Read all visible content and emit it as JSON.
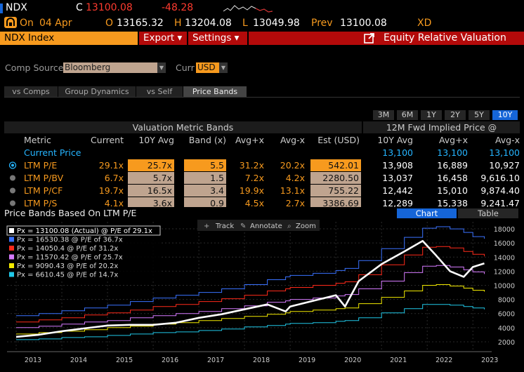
{
  "quote": {
    "ticker": "NDX",
    "c_label": "C",
    "last": "13100.08",
    "change": "-48.28",
    "status": "On",
    "date": "04 Apr",
    "o_label": "O",
    "open": "13165.32",
    "h_label": "H",
    "high": "13204.08",
    "l_label": "L",
    "low": "13049.98",
    "prev_label": "Prev",
    "prev": "13100.08",
    "exch": "XD"
  },
  "toolbar": {
    "security": "NDX Index",
    "export": "Export ▾",
    "settings": "Settings ▾",
    "function_title": "Equity Relative Valuation"
  },
  "controls": {
    "comp_source_label": "Comp Source",
    "comp_source_value": "Bloomberg",
    "curr_label": "Curr",
    "curr_value": "USD"
  },
  "tabs": [
    "vs Comps",
    "Group Dynamics",
    "vs Self",
    "Price Bands"
  ],
  "ranges": [
    "3M",
    "6M",
    "1Y",
    "2Y",
    "5Y",
    "10Y"
  ],
  "table": {
    "group_header_left": "Valuation Metric Bands",
    "group_header_right": "12M Fwd Implied Price @",
    "columns": [
      "Metric",
      "Current",
      "10Y Avg",
      "Band (x)",
      "Avg+x",
      "Avg-x",
      "Est (USD)",
      "10Y Avg",
      "Avg+x",
      "Avg-x"
    ],
    "current_price": {
      "label": "Current Price",
      "values": [
        "13,100",
        "13,100",
        "13,100"
      ]
    },
    "rows": [
      {
        "metric": "LTM P/E",
        "current": "29.1x",
        "avg": "25.7x",
        "band": "5.5",
        "avg_plus": "31.2x",
        "avg_minus": "20.2x",
        "est": "542.01",
        "p_avg": "13,908",
        "p_plus": "16,889",
        "p_minus": "10,927"
      },
      {
        "metric": "LTM P/BV",
        "current": "6.7x",
        "avg": "5.7x",
        "band": "1.5",
        "avg_plus": "7.2x",
        "avg_minus": "4.2x",
        "est": "2280.50",
        "p_avg": "13,037",
        "p_plus": "16,458",
        "p_minus": "9,616.10"
      },
      {
        "metric": "LTM P/CF",
        "current": "19.7x",
        "avg": "16.5x",
        "band": "3.4",
        "avg_plus": "19.9x",
        "avg_minus": "13.1x",
        "est": "755.22",
        "p_avg": "12,442",
        "p_plus": "15,010",
        "p_minus": "9,874.40"
      },
      {
        "metric": "LTM P/S",
        "current": "4.1x",
        "avg": "3.6x",
        "band": "0.9",
        "avg_plus": "4.5x",
        "avg_minus": "2.7x",
        "est": "3386.69",
        "p_avg": "12,289",
        "p_plus": "15,338",
        "p_minus": "9,241.47"
      }
    ]
  },
  "chart_panel": {
    "title": "Price Bands Based On LTM P/E",
    "view_chart": "Chart",
    "view_table": "Table",
    "track": "Track",
    "annotate": "Annotate",
    "zoom": "Zoom"
  },
  "colors": {
    "orange": "#f79a1e",
    "red_bar": "#b30a0a",
    "blue": "#1565d8",
    "px": "#ffffff",
    "plus1": "#3a72ff",
    "plus05": "#ff2a1a",
    "avg": "#d67bff",
    "minus": "#f3ea00",
    "minus2": "#20c8e8"
  },
  "chart_data": {
    "type": "line",
    "x": [
      2013,
      2013.5,
      2014,
      2014.5,
      2015,
      2015.5,
      2016,
      2016.5,
      2017,
      2017.5,
      2018,
      2018.5,
      2018.9,
      2019,
      2019.5,
      2020,
      2020.2,
      2020.5,
      2021,
      2021.5,
      2021.9,
      2022.2,
      2022.5,
      2022.8,
      2023,
      2023.25
    ],
    "xticks": [
      "2013",
      "2014",
      "2015",
      "2016",
      "2017",
      "2018",
      "2019",
      "2020",
      "2021",
      "2022",
      "2023"
    ],
    "yticks": [
      2000,
      4000,
      6000,
      8000,
      10000,
      12000,
      14000,
      16000,
      18000
    ],
    "ylim": [
      1000,
      19000
    ],
    "legend": [
      {
        "text": "Px = 13100.08 (Actual) @ P/E of 29.1x",
        "color": "#ffffff"
      },
      {
        "text": "Px = 16530.38 @ P/E of 36.7x",
        "color": "#3a72ff"
      },
      {
        "text": "Px = 14050.4 @ P/E of 31.2x",
        "color": "#ff2a1a"
      },
      {
        "text": "Px = 11570.42 @ P/E of 25.7x",
        "color": "#d67bff"
      },
      {
        "text": "Px = 9090.43 @ P/E of 20.2x",
        "color": "#f3ea00"
      },
      {
        "text": "Px = 6610.45 @ P/E of 14.7x",
        "color": "#20c8e8"
      }
    ],
    "series": [
      {
        "name": "Px = 13100.08 (Actual) @ P/E of 29.1x",
        "values": [
          2700,
          3000,
          3500,
          3900,
          4300,
          4400,
          4400,
          4700,
          5400,
          5900,
          6600,
          7300,
          6300,
          7000,
          7800,
          8600,
          7000,
          10600,
          13000,
          14800,
          16300,
          14200,
          12000,
          11200,
          12600,
          13100
        ]
      },
      {
        "name": "Px = 16530.38 @ P/E of 36.7x",
        "values": [
          5700,
          6000,
          6400,
          6800,
          7200,
          7700,
          8200,
          8600,
          9000,
          9500,
          10100,
          10800,
          11200,
          11400,
          11700,
          12100,
          12400,
          13500,
          15200,
          16800,
          18100,
          18300,
          18000,
          17500,
          16900,
          16600
        ]
      },
      {
        "name": "Px = 14050.4 @ P/E of 31.2x",
        "values": [
          4800,
          5100,
          5400,
          5800,
          6100,
          6500,
          7000,
          7300,
          7700,
          8100,
          8600,
          9200,
          9500,
          9700,
          10000,
          10300,
          10500,
          11500,
          12900,
          14300,
          15400,
          15500,
          15300,
          14800,
          14400,
          14100
        ]
      },
      {
        "name": "Px = 11570.42 @ P/E of 25.7x",
        "values": [
          4000,
          4200,
          4500,
          4800,
          5000,
          5400,
          5700,
          6000,
          6300,
          6700,
          7100,
          7600,
          7800,
          8000,
          8200,
          8500,
          8700,
          9500,
          10600,
          11800,
          12700,
          12800,
          12600,
          12200,
          11900,
          11600
        ]
      },
      {
        "name": "Px = 9090.43 @ P/E of 20.2x",
        "values": [
          3100,
          3300,
          3500,
          3700,
          4000,
          4200,
          4500,
          4700,
          5000,
          5300,
          5600,
          5900,
          6100,
          6300,
          6500,
          6700,
          6800,
          7400,
          8300,
          9200,
          10000,
          10100,
          9900,
          9600,
          9300,
          9100
        ]
      },
      {
        "name": "Px = 6610.45 @ P/E of 14.7x",
        "values": [
          2300,
          2400,
          2600,
          2700,
          2900,
          3100,
          3300,
          3400,
          3600,
          3800,
          4100,
          4300,
          4500,
          4600,
          4700,
          4900,
          5000,
          5400,
          6100,
          6700,
          7300,
          7300,
          7200,
          7000,
          6800,
          6600
        ]
      }
    ]
  }
}
